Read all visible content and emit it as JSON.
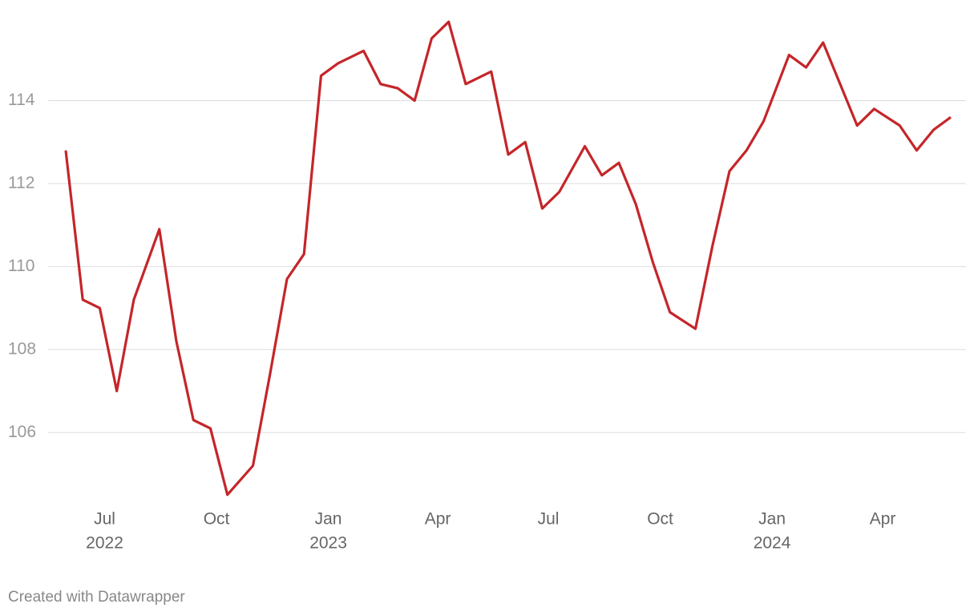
{
  "chart_data": {
    "type": "line",
    "x": [
      "2022-05-30",
      "2022-06-13",
      "2022-06-27",
      "2022-07-11",
      "2022-07-25",
      "2022-08-15",
      "2022-08-29",
      "2022-09-12",
      "2022-09-26",
      "2022-10-10",
      "2022-10-31",
      "2022-11-14",
      "2022-11-28",
      "2022-12-12",
      "2022-12-26",
      "2023-01-09",
      "2023-01-30",
      "2023-02-13",
      "2023-02-27",
      "2023-03-13",
      "2023-03-27",
      "2023-04-10",
      "2023-04-24",
      "2023-05-15",
      "2023-05-29",
      "2023-06-12",
      "2023-06-26",
      "2023-07-10",
      "2023-07-31",
      "2023-08-14",
      "2023-08-28",
      "2023-09-11",
      "2023-09-25",
      "2023-10-09",
      "2023-10-30",
      "2023-11-13",
      "2023-11-27",
      "2023-12-11",
      "2023-12-25",
      "2024-01-15",
      "2024-01-29",
      "2024-02-12",
      "2024-02-26",
      "2024-03-11",
      "2024-03-25",
      "2024-04-15",
      "2024-04-29",
      "2024-05-13",
      "2024-05-27"
    ],
    "series": [
      {
        "color": "#c4262a",
        "values": [
          112.8,
          109.2,
          109.0,
          107.0,
          109.2,
          110.9,
          108.2,
          106.3,
          106.1,
          104.5,
          105.2,
          107.4,
          109.7,
          110.3,
          114.6,
          114.9,
          115.2,
          114.4,
          114.3,
          114.0,
          115.5,
          115.9,
          114.4,
          114.7,
          112.7,
          113.0,
          111.4,
          111.8,
          112.9,
          112.2,
          112.5,
          111.5,
          110.1,
          108.9,
          108.5,
          110.5,
          112.3,
          112.8,
          113.5,
          115.1,
          114.8,
          115.4,
          114.4,
          113.4,
          113.8,
          113.4,
          112.8,
          113.3,
          113.6
        ]
      }
    ],
    "xlim": [
      "2022-05-30",
      "2024-05-27"
    ],
    "xticks": [
      {
        "value": "2022-07-01",
        "label": "Jul",
        "year": "2022"
      },
      {
        "value": "2022-10-01",
        "label": "Oct"
      },
      {
        "value": "2023-01-01",
        "label": "Jan",
        "year": "2023"
      },
      {
        "value": "2023-04-01",
        "label": "Apr"
      },
      {
        "value": "2023-07-01",
        "label": "Jul"
      },
      {
        "value": "2023-10-01",
        "label": "Oct"
      },
      {
        "value": "2024-01-01",
        "label": "Jan",
        "year": "2024"
      },
      {
        "value": "2024-04-01",
        "label": "Apr"
      }
    ],
    "ylim": [
      104.4,
      116
    ],
    "yticks": [
      106,
      108,
      110,
      112,
      114
    ],
    "grid": true,
    "footer": "Created with Datawrapper"
  }
}
